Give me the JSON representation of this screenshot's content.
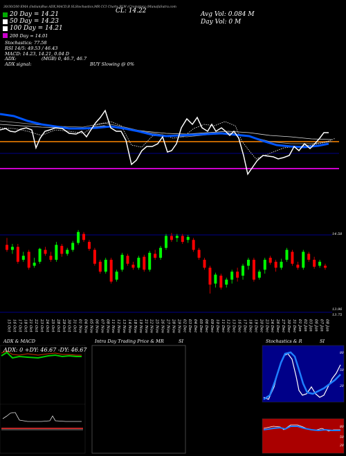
{
  "header": {
    "top_line": "30/30/200 EMA (Indian)Bus ADX,MACD,B SLStochastics,MR CCI Charts BLW (Crompton) (MunafaSutra.com",
    "cl_label": "CL: 14.22",
    "ema_lines": [
      {
        "text": "20 Day = 14.21",
        "color": "#00aa00"
      },
      {
        "text": "50 Day = 14.23",
        "color": "#ffffff"
      },
      {
        "text": "100 Day = 14.21",
        "color": "#ffffff"
      },
      {
        "text": "200 Day = 14.01",
        "color": "#cc00cc"
      }
    ],
    "stoch": "Stochastics: 77.58",
    "rsi": "RSI 14/5: 49.53 / 46.43",
    "macd": "MACD: 14.23, 14.21, 0.04 D",
    "avg_vol": "Avg Vol: 0.084 M",
    "day_vol": "Day Vol: 0 M",
    "adx": "ADX:",
    "adx_vals": "(MGB) 0, 46.7, 46.7",
    "adx_signal": "ADX signal:",
    "buy_signal": "BUY Slowing @ 0%"
  },
  "price_panel": {
    "right_label": "14.58",
    "bottom_labels": [
      "13.96",
      "13.75"
    ]
  },
  "panels": {
    "adx": {
      "title": "ADX & MACD",
      "reading": "ADX: 0 +DY: 46.67 -DY: 46.67"
    },
    "intraday": {
      "title": "Intra Day Trading Price & MR",
      "si": "SI"
    },
    "stoch": {
      "title": "Stochastics & R",
      "si": "SI",
      "ticks": [
        "80",
        "50",
        "20"
      ],
      "rsi_ticks": [
        "80",
        "50",
        "20"
      ]
    }
  },
  "colors": {
    "ema20": "#0055ff",
    "price": "#ffffff",
    "bull": "#00ff00",
    "bear": "#ff0000",
    "orange": "#ff8800",
    "magenta": "#cc00cc",
    "navy": "#000088"
  },
  "chart_data": {
    "type": "candlestick",
    "x": [
      "15 Oct",
      "16 Oct",
      "17 Oct",
      "18 Oct",
      "21 Oct",
      "22 Oct",
      "23 Oct",
      "24 Oct",
      "25 Oct",
      "28 Oct",
      "29 Oct",
      "30 Oct",
      "31 Oct",
      "01 Nov",
      "04 Nov",
      "05 Nov",
      "06 Nov",
      "07 Nov",
      "08 Nov",
      "11 Nov",
      "12 Nov",
      "13 Nov",
      "14 Nov",
      "18 Nov",
      "19 Nov",
      "21 Nov",
      "22 Nov",
      "25 Nov",
      "26 Nov",
      "27 Nov",
      "28 Nov",
      "29 Nov",
      "02 Dec",
      "03 Dec",
      "04 Dec",
      "05 Dec",
      "06 Dec",
      "09 Dec",
      "10 Dec",
      "11 Dec",
      "12 Dec",
      "13 Dec",
      "16 Dec",
      "17 Dec",
      "18 Dec",
      "19 Dec",
      "20 Dec",
      "23 Dec",
      "24 Dec",
      "26 Dec",
      "27 Dec",
      "30 Dec",
      "31 Dec",
      "01 Jan",
      "02 Jan",
      "03 Jan",
      "06 Jan",
      "07 Jan",
      "08 Jan"
    ],
    "candles": [
      {
        "o": 14.45,
        "c": 14.4,
        "h": 14.52,
        "l": 14.38
      },
      {
        "o": 14.4,
        "c": 14.43,
        "h": 14.46,
        "l": 14.36
      },
      {
        "o": 14.43,
        "c": 14.28,
        "h": 14.46,
        "l": 14.26
      },
      {
        "o": 14.3,
        "c": 14.34,
        "h": 14.38,
        "l": 14.28
      },
      {
        "o": 14.38,
        "c": 14.22,
        "h": 14.4,
        "l": 14.2
      },
      {
        "o": 14.24,
        "c": 14.27,
        "h": 14.32,
        "l": 14.22
      },
      {
        "o": 14.28,
        "c": 14.41,
        "h": 14.42,
        "l": 14.26
      },
      {
        "o": 14.4,
        "c": 14.36,
        "h": 14.43,
        "l": 14.34
      },
      {
        "o": 14.34,
        "c": 14.3,
        "h": 14.38,
        "l": 14.28
      },
      {
        "o": 14.3,
        "c": 14.45,
        "h": 14.48,
        "l": 14.28
      },
      {
        "o": 14.44,
        "c": 14.36,
        "h": 14.46,
        "l": 14.33
      },
      {
        "o": 14.36,
        "c": 14.4,
        "h": 14.42,
        "l": 14.34
      },
      {
        "o": 14.4,
        "c": 14.47,
        "h": 14.49,
        "l": 14.38
      },
      {
        "o": 14.47,
        "c": 14.58,
        "h": 14.6,
        "l": 14.45
      },
      {
        "o": 14.56,
        "c": 14.5,
        "h": 14.58,
        "l": 14.48
      },
      {
        "o": 14.48,
        "c": 14.41,
        "h": 14.5,
        "l": 14.39
      },
      {
        "o": 14.4,
        "c": 14.26,
        "h": 14.42,
        "l": 14.24
      },
      {
        "o": 14.28,
        "c": 14.18,
        "h": 14.3,
        "l": 14.16
      },
      {
        "o": 14.18,
        "c": 14.3,
        "h": 14.32,
        "l": 14.16
      },
      {
        "o": 14.3,
        "c": 14.08,
        "h": 14.32,
        "l": 14.06
      },
      {
        "o": 14.1,
        "c": 14.18,
        "h": 14.2,
        "l": 14.08
      },
      {
        "o": 14.2,
        "c": 14.35,
        "h": 14.37,
        "l": 14.18
      },
      {
        "o": 14.34,
        "c": 14.26,
        "h": 14.36,
        "l": 14.24
      },
      {
        "o": 14.25,
        "c": 14.22,
        "h": 14.28,
        "l": 14.2
      },
      {
        "o": 14.22,
        "c": 14.32,
        "h": 14.34,
        "l": 14.2
      },
      {
        "o": 14.33,
        "c": 14.2,
        "h": 14.35,
        "l": 14.18
      },
      {
        "o": 14.2,
        "c": 14.37,
        "h": 14.39,
        "l": 14.18
      },
      {
        "o": 14.36,
        "c": 14.32,
        "h": 14.4,
        "l": 14.3
      },
      {
        "o": 14.32,
        "c": 14.42,
        "h": 14.44,
        "l": 14.3
      },
      {
        "o": 14.42,
        "c": 14.54,
        "h": 14.56,
        "l": 14.4
      },
      {
        "o": 14.54,
        "c": 14.5,
        "h": 14.57,
        "l": 14.48
      },
      {
        "o": 14.52,
        "c": 14.54,
        "h": 14.56,
        "l": 14.48
      },
      {
        "o": 14.54,
        "c": 14.48,
        "h": 14.56,
        "l": 14.46
      },
      {
        "o": 14.5,
        "c": 14.53,
        "h": 14.55,
        "l": 14.47
      },
      {
        "o": 14.5,
        "c": 14.4,
        "h": 14.52,
        "l": 14.38
      },
      {
        "o": 14.4,
        "c": 14.32,
        "h": 14.42,
        "l": 14.3
      },
      {
        "o": 14.3,
        "c": 14.22,
        "h": 14.32,
        "l": 14.2
      },
      {
        "o": 14.22,
        "c": 14.05,
        "h": 14.24,
        "l": 13.96
      },
      {
        "o": 14.06,
        "c": 14.15,
        "h": 14.17,
        "l": 14.02
      },
      {
        "o": 14.14,
        "c": 14.02,
        "h": 14.16,
        "l": 14.0
      },
      {
        "o": 14.05,
        "c": 14.1,
        "h": 14.12,
        "l": 14.02
      },
      {
        "o": 14.1,
        "c": 14.18,
        "h": 14.2,
        "l": 14.06
      },
      {
        "o": 14.18,
        "c": 14.12,
        "h": 14.22,
        "l": 14.08
      },
      {
        "o": 14.14,
        "c": 14.24,
        "h": 14.26,
        "l": 14.1
      },
      {
        "o": 14.24,
        "c": 14.3,
        "h": 14.32,
        "l": 14.2
      },
      {
        "o": 14.3,
        "c": 14.1,
        "h": 14.32,
        "l": 14.08
      },
      {
        "o": 14.12,
        "c": 14.18,
        "h": 14.2,
        "l": 14.1
      },
      {
        "o": 14.2,
        "c": 14.3,
        "h": 14.32,
        "l": 14.16
      },
      {
        "o": 14.32,
        "c": 14.27,
        "h": 14.34,
        "l": 14.25
      },
      {
        "o": 14.28,
        "c": 14.22,
        "h": 14.3,
        "l": 14.18
      },
      {
        "o": 14.22,
        "c": 14.28,
        "h": 14.31,
        "l": 14.2
      },
      {
        "o": 14.3,
        "c": 14.4,
        "h": 14.42,
        "l": 14.28
      },
      {
        "o": 14.38,
        "c": 14.26,
        "h": 14.4,
        "l": 14.24
      },
      {
        "o": 14.25,
        "c": 14.22,
        "h": 14.28,
        "l": 14.2
      },
      {
        "o": 14.22,
        "c": 14.38,
        "h": 14.4,
        "l": 14.2
      },
      {
        "o": 14.36,
        "c": 14.3,
        "h": 14.38,
        "l": 14.28
      },
      {
        "o": 14.3,
        "c": 14.23,
        "h": 14.33,
        "l": 14.21
      },
      {
        "o": 14.24,
        "c": 14.28,
        "h": 14.3,
        "l": 14.22
      },
      {
        "o": 14.24,
        "c": 14.22,
        "h": 14.26,
        "l": 14.2
      }
    ],
    "ylim": [
      13.75,
      14.62
    ]
  }
}
